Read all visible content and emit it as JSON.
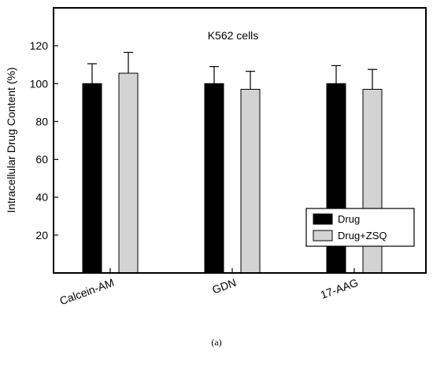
{
  "chart_data": {
    "type": "bar",
    "title": "K562 cells",
    "xlabel": "",
    "ylabel": "Intracellular Drug Content (%)",
    "categories": [
      "Calcein-AM",
      "GDN",
      "17-AAG"
    ],
    "series": [
      {
        "name": "Drug",
        "color": "#000000",
        "values": [
          100,
          100,
          100
        ],
        "errors": [
          10.5,
          9,
          9.5
        ]
      },
      {
        "name": "Drug+ZSQ",
        "color": "#d3d3d3",
        "values": [
          105.5,
          97,
          97
        ],
        "errors": [
          11,
          9.5,
          10.5
        ]
      }
    ],
    "ylim": [
      0,
      140
    ],
    "yticks": [
      20,
      40,
      60,
      80,
      100,
      120
    ],
    "grid": false,
    "legend_position": "bottom-right",
    "error_bars": "upper"
  },
  "caption": "(a)"
}
